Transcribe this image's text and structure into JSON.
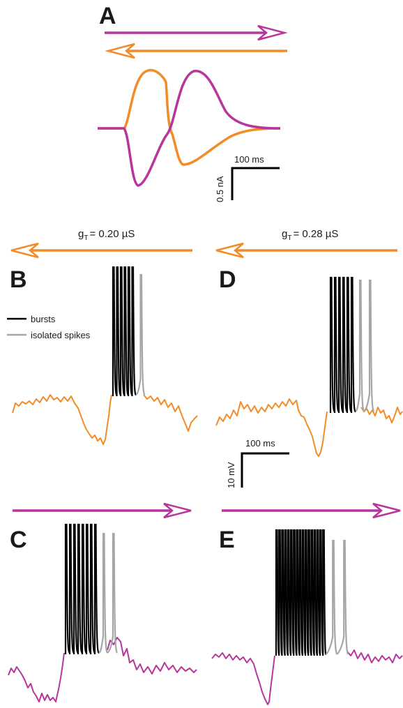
{
  "colors": {
    "magenta": "#b8359b",
    "orange": "#f28c28",
    "burst": "#000000",
    "isolated": "#a6a6a6"
  },
  "panels": {
    "a": "A",
    "b": "B",
    "c": "C",
    "d": "D",
    "e": "E"
  },
  "conductance": {
    "left": {
      "symbol": "g",
      "subscript": "T",
      "value_text": "= 0.20 µS"
    },
    "right": {
      "symbol": "g",
      "subscript": "T",
      "value_text": "= 0.28 µS"
    }
  },
  "legend": {
    "bursts": "bursts",
    "isolated": "isolated spikes"
  },
  "scalebars": {
    "current": {
      "time": "100 ms",
      "amplitude": "0.5 nA"
    },
    "voltage": {
      "time": "100 ms",
      "amplitude": "10 mV"
    }
  },
  "spike_counts": {
    "b": {
      "burst": 6,
      "isolated": 1
    },
    "c": {
      "burst": 8,
      "isolated": 2
    },
    "d": {
      "burst": 6,
      "isolated": 2
    },
    "e": {
      "burst": 17,
      "isolated": 2
    }
  }
}
